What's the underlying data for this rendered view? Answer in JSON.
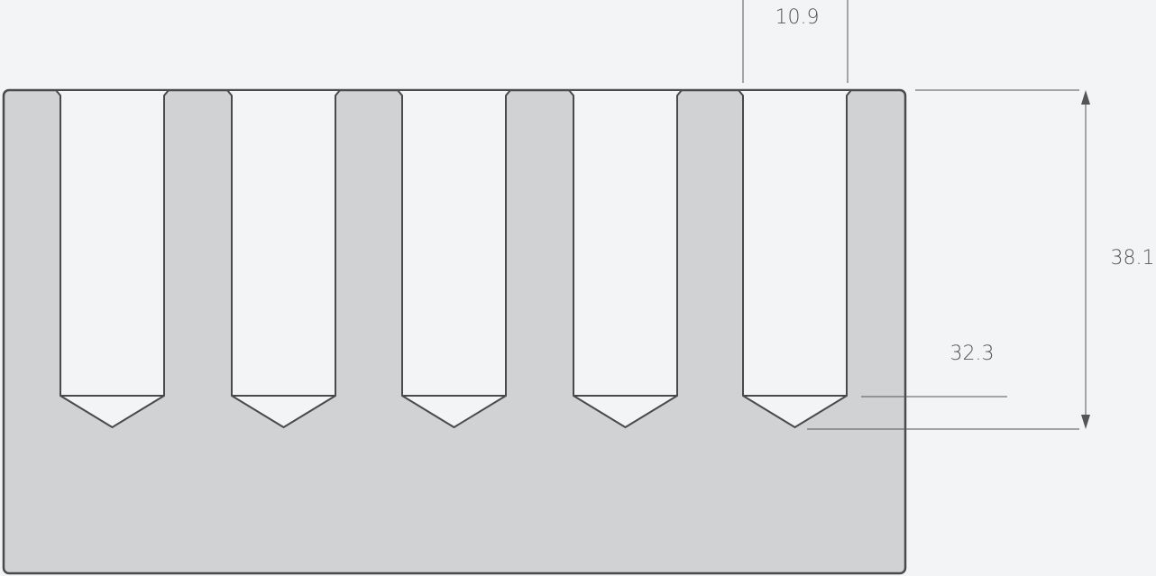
{
  "dimensions": [
    "10.9",
    "38.1",
    "32.3"
  ]
}
